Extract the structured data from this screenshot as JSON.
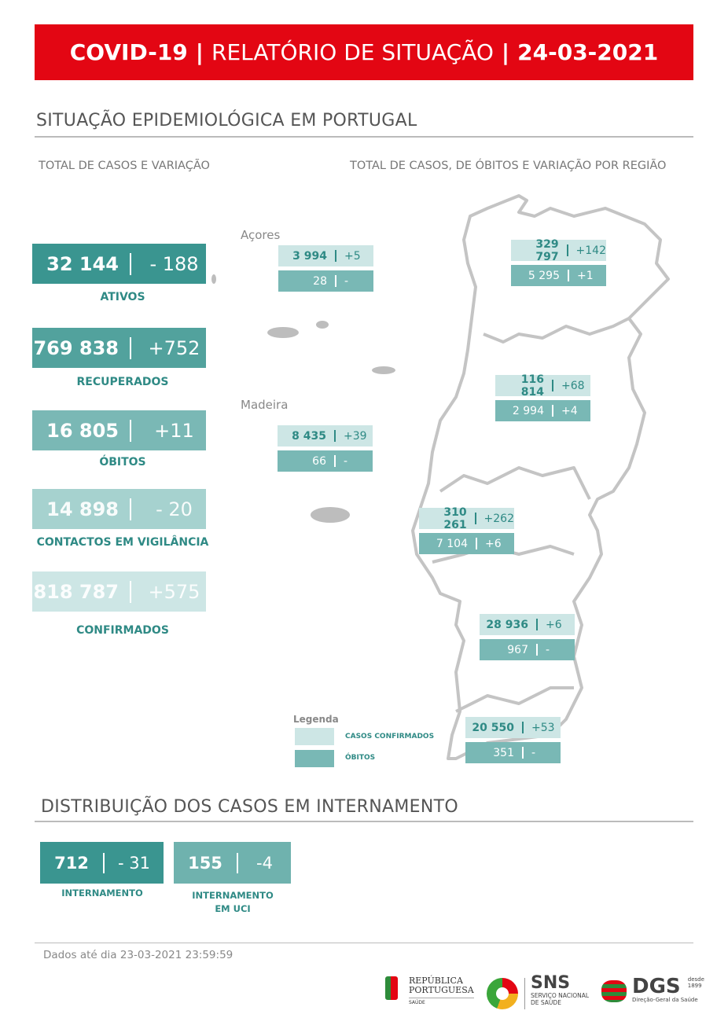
{
  "header": {
    "part1": "COVID-19",
    "sep": "|",
    "part2": "RELATÓRIO DE SITUAÇÃO",
    "part3": "24-03-2021"
  },
  "section1": {
    "title": "SITUAÇÃO EPIDEMIOLÓGICA EM PORTUGAL",
    "left_subtitle": "TOTAL DE CASOS E VARIAÇÃO",
    "right_subtitle": "TOTAL DE CASOS, DE ÓBITOS E VARIAÇÃO POR REGIÃO"
  },
  "kpis": [
    {
      "value": "32 144",
      "delta": "- 188",
      "label": "ATIVOS",
      "color": "#3a9590"
    },
    {
      "value": "769 838",
      "delta": "+752",
      "label": "RECUPERADOS",
      "color": "#52a29d"
    },
    {
      "value": "16 805",
      "delta": "+11",
      "label": "ÓBITOS",
      "color": "#7ab8b5"
    },
    {
      "value": "14 898",
      "delta": "- 20",
      "label": "CONTACTOS EM VIGILÂNCIA",
      "color": "#a6d2cf"
    },
    {
      "value": "818 787",
      "delta": "+575",
      "label": "CONFIRMADOS",
      "color": "#cde6e5"
    }
  ],
  "regions": {
    "acores": {
      "name": "Açores",
      "cases": "3 994",
      "cases_delta": "+5",
      "deaths": "28",
      "deaths_delta": "-"
    },
    "madeira": {
      "name": "Madeira",
      "cases": "8 435",
      "cases_delta": "+39",
      "deaths": "66",
      "deaths_delta": "-"
    },
    "norte": {
      "cases": "329 797",
      "cases_delta": "+142",
      "deaths": "5 295",
      "deaths_delta": "+1"
    },
    "centro": {
      "cases": "116 814",
      "cases_delta": "+68",
      "deaths": "2 994",
      "deaths_delta": "+4"
    },
    "lvt": {
      "cases": "310 261",
      "cases_delta": "+262",
      "deaths": "7 104",
      "deaths_delta": "+6"
    },
    "alentejo": {
      "cases": "28 936",
      "cases_delta": "+6",
      "deaths": "967",
      "deaths_delta": "-"
    },
    "algarve": {
      "cases": "20 550",
      "cases_delta": "+53",
      "deaths": "351",
      "deaths_delta": "-"
    }
  },
  "legend": {
    "title": "Legenda",
    "cases": "CASOS CONFIRMADOS",
    "deaths": "ÓBITOS",
    "cases_color": "#cde6e5",
    "deaths_color": "#79b8b5"
  },
  "section2": {
    "title": "DISTRIBUIÇÃO DOS CASOS EM INTERNAMENTO",
    "items": [
      {
        "value": "712",
        "delta": "- 31",
        "label1": "INTERNAMENTO",
        "label2": "",
        "color": "#3a9590"
      },
      {
        "value": "155",
        "delta": "-4",
        "label1": "INTERNAMENTO",
        "label2": "EM UCI",
        "color": "#6fb2ae"
      }
    ]
  },
  "footer": {
    "data_note": "Dados até dia 23-03-2021 23:59:59",
    "logos": {
      "republica": {
        "line1": "REPÚBLICA",
        "line2": "PORTUGUESA",
        "line3": "SAÚDE"
      },
      "sns": {
        "abbr": "SNS",
        "line1": "SERVIÇO NACIONAL",
        "line2": "DE SAÚDE"
      },
      "dgs": {
        "abbr": "DGS",
        "since": "desde",
        "year": "1899",
        "name": "Direção-Geral da Saúde"
      }
    }
  }
}
